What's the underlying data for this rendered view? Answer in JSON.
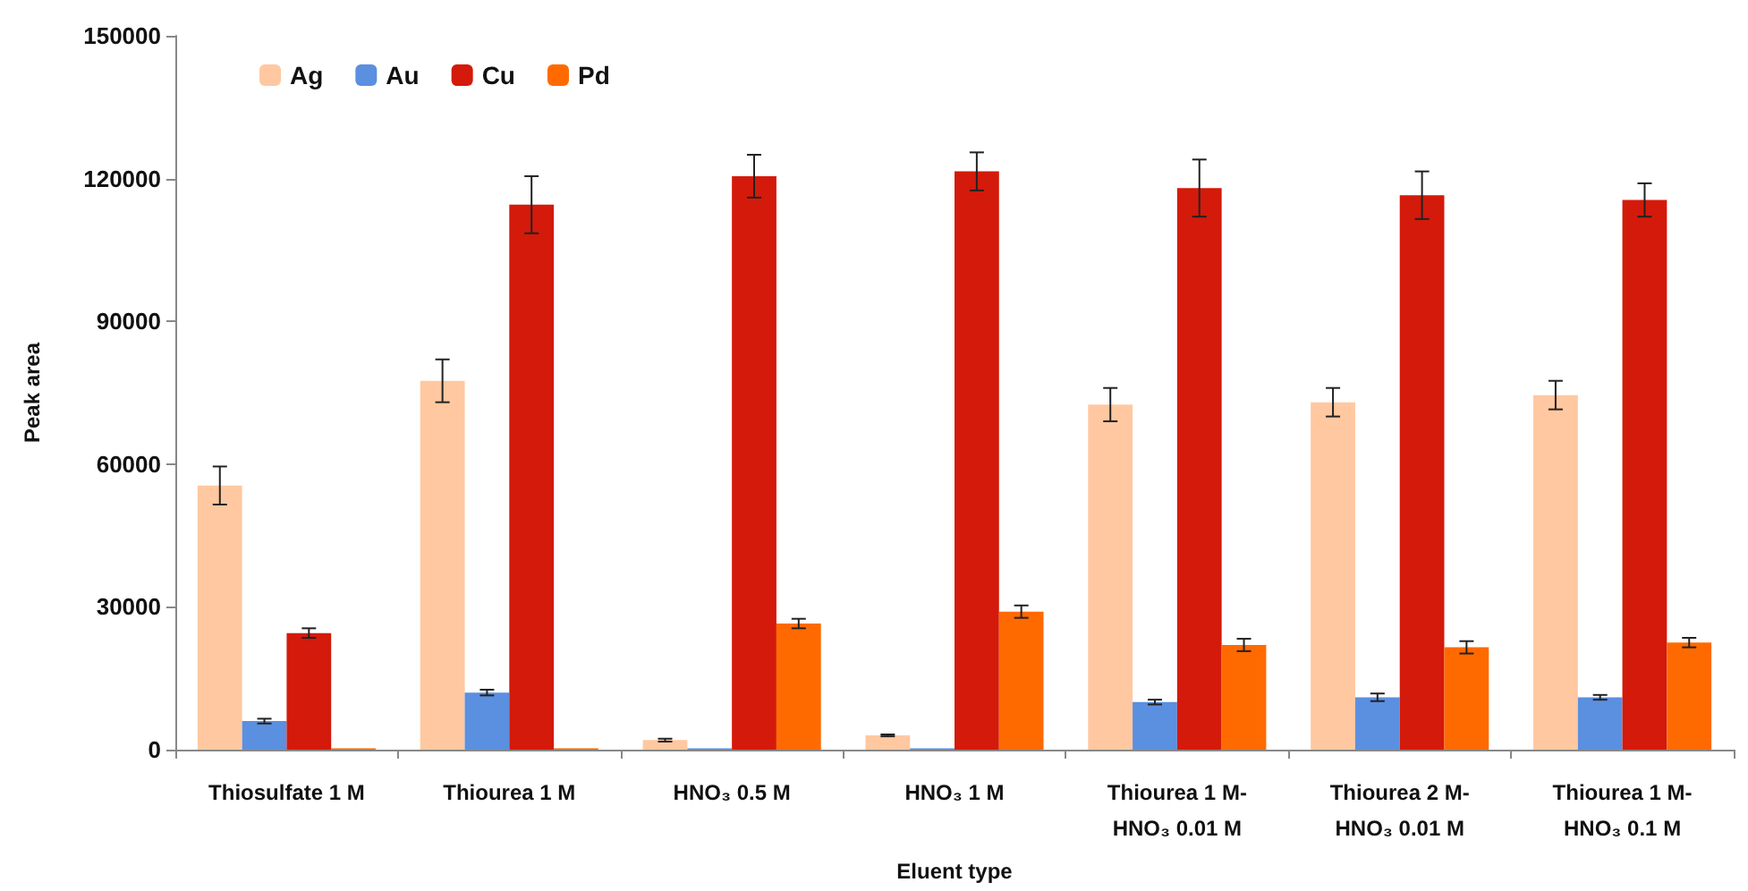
{
  "chart_data": {
    "type": "bar",
    "xlabel": "Eluent type",
    "ylabel": "Peak area",
    "categories": [
      "Thiosulfate 1 M",
      "Thiourea 1 M",
      "HNO₃ 0.5 M",
      "HNO₃ 1 M",
      "Thiourea 1 M-\nHNO₃ 0.01 M",
      "Thiourea 2 M-\nHNO₃ 0.01 M",
      "Thiourea 1 M-\nHNO₃ 0.1 M"
    ],
    "series": [
      {
        "name": "Ag",
        "color": "#ffc8a0",
        "values": [
          55500,
          77500,
          2000,
          3000,
          72500,
          73000,
          74500
        ],
        "errors": [
          4000,
          4500,
          300,
          200,
          3500,
          3000,
          3000
        ]
      },
      {
        "name": "Au",
        "color": "#5b8fe0",
        "values": [
          6000,
          12000,
          300,
          300,
          10000,
          11000,
          11000
        ],
        "errors": [
          500,
          600,
          null,
          null,
          500,
          800,
          500
        ]
      },
      {
        "name": "Cu",
        "color": "#d41a0a",
        "values": [
          24500,
          114500,
          120500,
          121500,
          118000,
          116500,
          115500
        ],
        "errors": [
          1000,
          6000,
          4500,
          4000,
          6000,
          5000,
          3500
        ]
      },
      {
        "name": "Pd",
        "color": "#ff6a00",
        "values": [
          300,
          300,
          26500,
          29000,
          22000,
          21500,
          22500
        ],
        "errors": [
          null,
          null,
          1000,
          1300,
          1300,
          1300,
          1000
        ]
      }
    ],
    "ylim": [
      0,
      150000
    ],
    "yticks": [
      0,
      30000,
      60000,
      90000,
      120000,
      150000
    ],
    "grid": false,
    "legend": "top left"
  }
}
